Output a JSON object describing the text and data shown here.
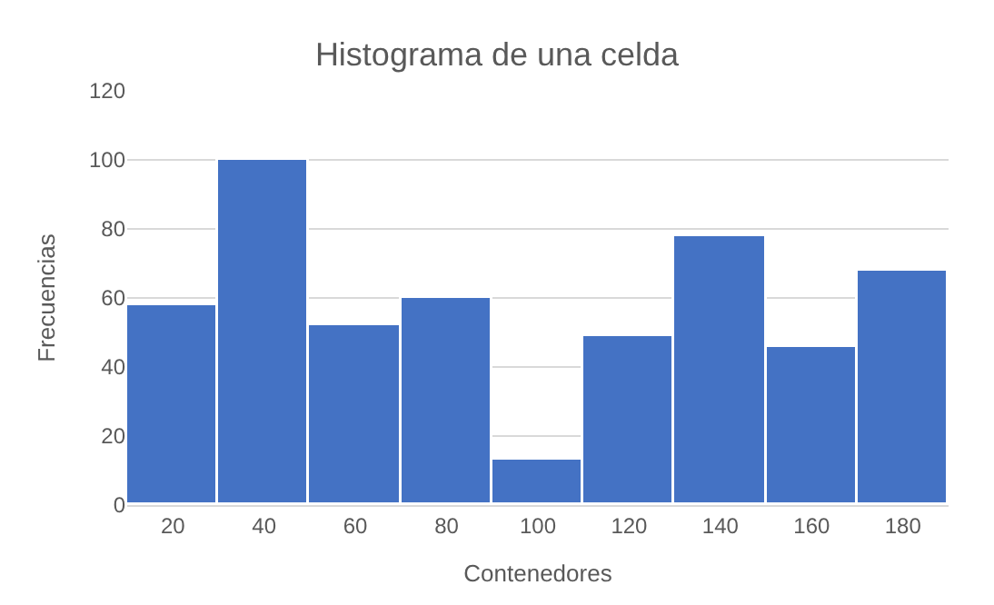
{
  "chart_data": {
    "type": "bar",
    "title": "Histograma de una celda",
    "xlabel": "Contenedores",
    "ylabel": "Frecuencias",
    "categories": [
      "20",
      "40",
      "60",
      "80",
      "100",
      "120",
      "140",
      "160",
      "180"
    ],
    "values": [
      58,
      100,
      52,
      60,
      13,
      49,
      78,
      46,
      68
    ],
    "color": "#4472c4",
    "ylim": [
      0,
      120
    ],
    "yticks": [
      0,
      20,
      40,
      60,
      80,
      100,
      120
    ],
    "grid": "y"
  }
}
